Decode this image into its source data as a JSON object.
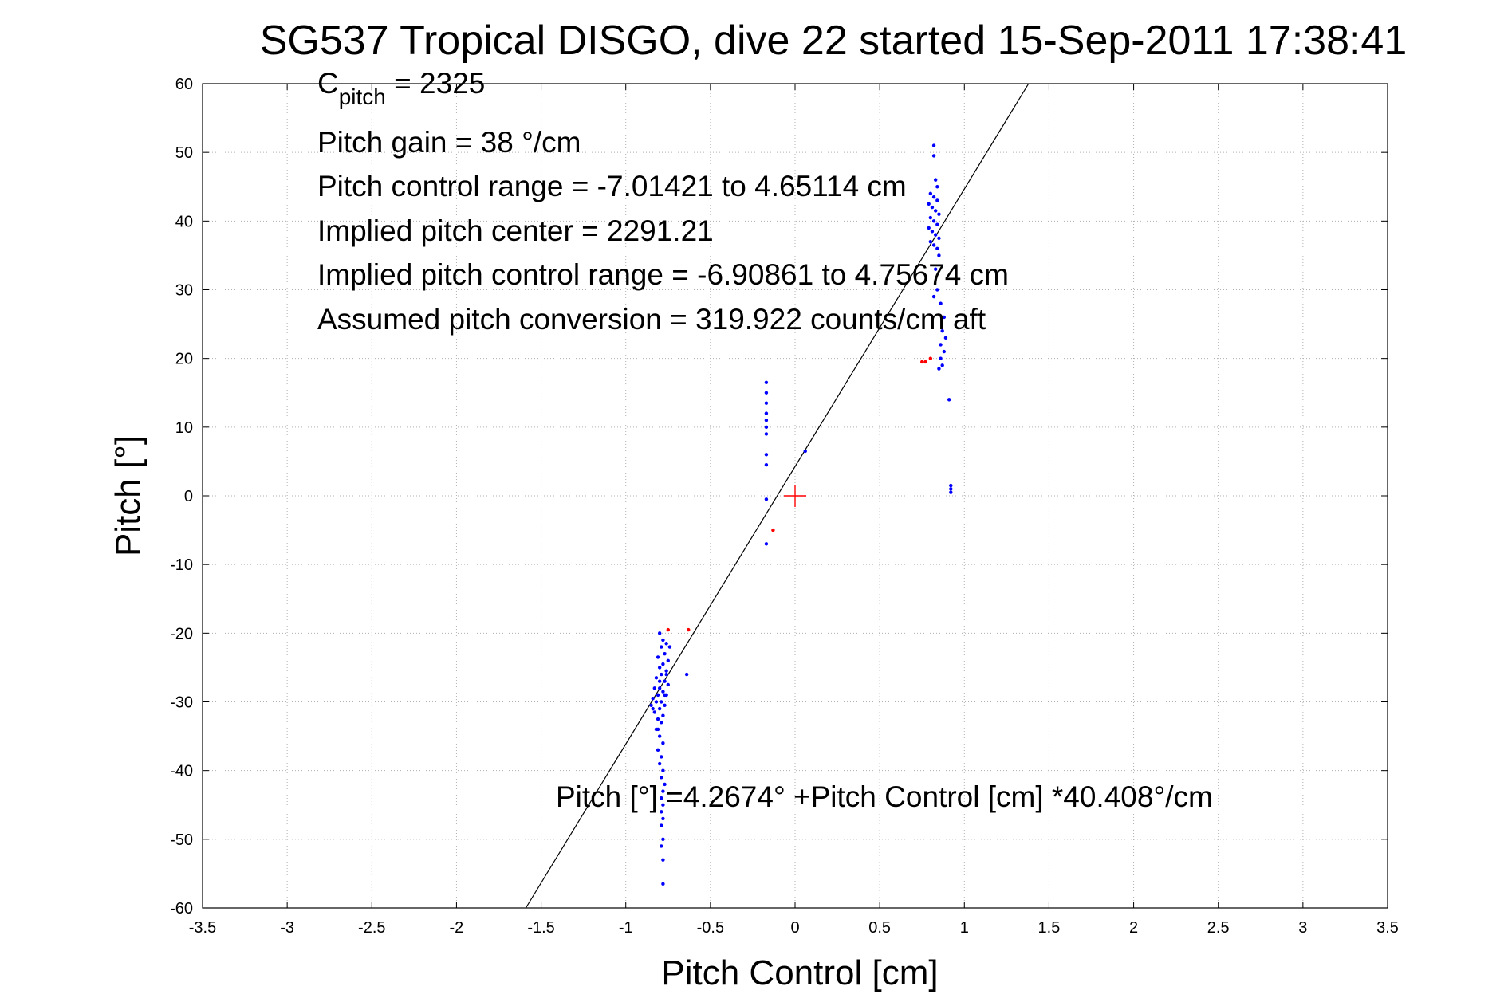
{
  "chart_data": {
    "type": "scatter",
    "title": "SG537 Tropical DISGO, dive 22 started 15-Sep-2011 17:38:41",
    "xlabel": "Pitch Control [cm]",
    "ylabel": "Pitch [°]",
    "xlim": [
      -3.5,
      3.5
    ],
    "ylim": [
      -60,
      60
    ],
    "grid": true,
    "xticks": [
      "-3.5",
      "-3",
      "-2.5",
      "-2",
      "-1.5",
      "-1",
      "-0.5",
      "0",
      "0.5",
      "1",
      "1.5",
      "2",
      "2.5",
      "3",
      "3.5"
    ],
    "yticks": [
      "60",
      "50",
      "40",
      "30",
      "20",
      "10",
      "0",
      "-10",
      "-20",
      "-30",
      "-40",
      "-50",
      "-60"
    ],
    "annotations": {
      "cpitch_base": "C",
      "cpitch_sub": "pitch",
      "cpitch_value": " = 2325",
      "gain": "Pitch gain = 38 °/cm",
      "control_range": "Pitch control range = -7.01421 to 4.65114 cm",
      "implied_center": "Implied pitch center = 2291.21",
      "implied_range": "Implied pitch control range = -6.90861 to 4.75674 cm",
      "conversion": "Assumed pitch conversion = 319.922 counts/cm aft",
      "fit_equation": "Pitch [°] =4.2674° +Pitch Control [cm] *40.408°/cm"
    },
    "fit_line": {
      "intercept": 4.2674,
      "slope": 40.408,
      "color": "#000000"
    },
    "center_marker": {
      "x": 0,
      "y": 0,
      "color": "#ff0000"
    },
    "series": [
      {
        "color": "#0000ff",
        "points": [
          [
            -0.8,
            -20
          ],
          [
            -0.78,
            -21
          ],
          [
            -0.76,
            -21.5
          ],
          [
            -0.79,
            -22
          ],
          [
            -0.77,
            -23
          ],
          [
            -0.81,
            -23.5
          ],
          [
            -0.75,
            -24
          ],
          [
            -0.78,
            -24.5
          ],
          [
            -0.8,
            -25
          ],
          [
            -0.76,
            -25.5
          ],
          [
            -0.79,
            -26
          ],
          [
            -0.82,
            -26.5
          ],
          [
            -0.77,
            -27
          ],
          [
            -0.75,
            -27.5
          ],
          [
            -0.8,
            -28
          ],
          [
            -0.83,
            -28
          ],
          [
            -0.78,
            -28.5
          ],
          [
            -0.76,
            -29
          ],
          [
            -0.81,
            -29
          ],
          [
            -0.84,
            -29.5
          ],
          [
            -0.79,
            -30
          ],
          [
            -0.82,
            -30
          ],
          [
            -0.85,
            -30.5
          ],
          [
            -0.77,
            -30.5
          ],
          [
            -0.8,
            -31
          ],
          [
            -0.83,
            -31.5
          ],
          [
            -0.78,
            -32
          ],
          [
            -0.81,
            -32.5
          ],
          [
            -0.79,
            -33
          ],
          [
            -0.82,
            -34
          ],
          [
            -0.8,
            -35
          ],
          [
            -0.78,
            -36
          ],
          [
            -0.81,
            -37
          ],
          [
            -0.79,
            -38
          ],
          [
            -0.8,
            -39
          ],
          [
            -0.78,
            -40
          ],
          [
            -0.79,
            -41
          ],
          [
            -0.77,
            -42
          ],
          [
            -0.78,
            -43
          ],
          [
            -0.79,
            -44
          ],
          [
            -0.78,
            -45
          ],
          [
            -0.79,
            -46
          ],
          [
            -0.78,
            -47
          ],
          [
            -0.79,
            -48
          ],
          [
            -0.78,
            -50
          ],
          [
            -0.79,
            -51
          ],
          [
            -0.78,
            -53
          ],
          [
            -0.78,
            -56.5
          ],
          [
            -0.64,
            -26
          ],
          [
            -0.74,
            -22
          ],
          [
            -0.76,
            -26
          ],
          [
            -0.8,
            -27
          ],
          [
            -0.77,
            -29
          ],
          [
            -0.84,
            -31
          ],
          [
            -0.81,
            -34
          ],
          [
            -0.17,
            16.5
          ],
          [
            -0.17,
            15
          ],
          [
            -0.17,
            13.5
          ],
          [
            -0.17,
            12
          ],
          [
            -0.17,
            11
          ],
          [
            -0.17,
            10
          ],
          [
            -0.17,
            9
          ],
          [
            -0.17,
            6
          ],
          [
            -0.17,
            4.5
          ],
          [
            -0.17,
            -0.5
          ],
          [
            -0.17,
            -7
          ],
          [
            0.06,
            6.5
          ],
          [
            0.82,
            51
          ],
          [
            0.82,
            49.5
          ],
          [
            0.8,
            44
          ],
          [
            0.82,
            43.5
          ],
          [
            0.84,
            43
          ],
          [
            0.79,
            42.5
          ],
          [
            0.81,
            42
          ],
          [
            0.83,
            41.5
          ],
          [
            0.85,
            41
          ],
          [
            0.8,
            40.5
          ],
          [
            0.82,
            40
          ],
          [
            0.84,
            39.5
          ],
          [
            0.79,
            39
          ],
          [
            0.81,
            38.5
          ],
          [
            0.83,
            38
          ],
          [
            0.85,
            37.5
          ],
          [
            0.8,
            37
          ],
          [
            0.82,
            36.5
          ],
          [
            0.84,
            36
          ],
          [
            0.85,
            35
          ],
          [
            0.83,
            33
          ],
          [
            0.84,
            30
          ],
          [
            0.82,
            29
          ],
          [
            0.86,
            28
          ],
          [
            0.88,
            26
          ],
          [
            0.87,
            24
          ],
          [
            0.89,
            23
          ],
          [
            0.86,
            22
          ],
          [
            0.88,
            21
          ],
          [
            0.86,
            20
          ],
          [
            0.87,
            19
          ],
          [
            0.85,
            18.5
          ],
          [
            0.91,
            14
          ],
          [
            0.92,
            1.5
          ],
          [
            0.92,
            1
          ],
          [
            0.92,
            0.5
          ],
          [
            0.83,
            46
          ],
          [
            0.84,
            45
          ]
        ]
      },
      {
        "color": "#ff0000",
        "points": [
          [
            -0.13,
            -5
          ],
          [
            -0.63,
            -19.5
          ],
          [
            -0.75,
            -19.5
          ],
          [
            0.75,
            19.5
          ],
          [
            0.77,
            19.5
          ],
          [
            0.8,
            20
          ]
        ]
      }
    ]
  }
}
